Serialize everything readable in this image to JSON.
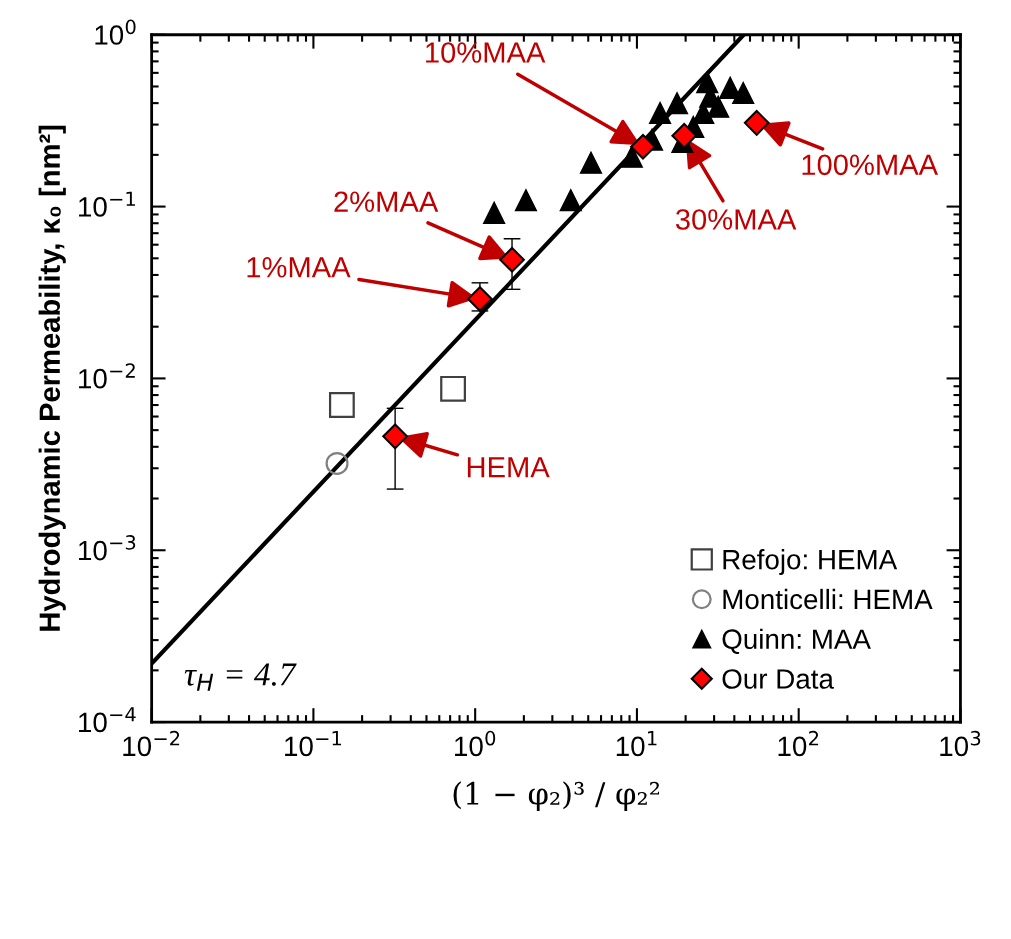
{
  "chart_data": {
    "type": "scatter",
    "xlabel": "(1 − φ₂)³ / φ₂²",
    "ylabel": "Hydrodynamic Permeability, κ₀ [nm²]",
    "log": "xy",
    "grid": false,
    "legend": "bottom right",
    "xlim": [
      0.01,
      1000
    ],
    "ylim": [
      0.0001,
      1
    ],
    "xticks": [
      {
        "value": 0.01,
        "label": "10$^{−2}$"
      },
      {
        "value": 0.1,
        "label": "10$^{−1}$"
      },
      {
        "value": 1,
        "label": "10$^{0}$"
      },
      {
        "value": 10,
        "label": "10$^{1}$"
      },
      {
        "value": 100,
        "label": "10$^{2}$"
      },
      {
        "value": 1000,
        "label": "10$^{3}$"
      }
    ],
    "yticks": [
      {
        "value": 0.0001,
        "label": "10$^{−4}$"
      },
      {
        "value": 0.001,
        "label": "10$^{−3}$"
      },
      {
        "value": 0.01,
        "label": "10$^{−2}$"
      },
      {
        "value": 0.1,
        "label": "10$^{−1}$"
      },
      {
        "value": 1,
        "label": "10$^{0}$"
      }
    ],
    "series": [
      {
        "type": "line",
        "color": "#000000",
        "marker": "none",
        "line_style": "solid",
        "x": [
          0.01,
          45.7
        ],
        "values": [
          0.000219,
          1.0
        ]
      },
      {
        "name": "Refojo: HEMA",
        "color": "#404040",
        "marker": "square",
        "x": [
          0.15,
          0.73
        ],
        "values": [
          0.007,
          0.0087
        ]
      },
      {
        "name": "Monticelli: HEMA",
        "color": "#808080",
        "marker": "circle",
        "x": [
          0.14
        ],
        "values": [
          0.0032
        ]
      },
      {
        "name": "Quinn: MAA",
        "color": "#000000",
        "marker": "triangle",
        "x": [
          1.31,
          2.06,
          3.9,
          5.2,
          9.3,
          12.4,
          13.9,
          17.7,
          19.1,
          22.3,
          25.7,
          27.2,
          28.4,
          31.8,
          37.7,
          45.4
        ],
        "values": [
          0.092,
          0.109,
          0.109,
          0.18,
          0.195,
          0.245,
          0.351,
          0.4,
          0.238,
          0.291,
          0.351,
          0.53,
          0.436,
          0.381,
          0.491,
          0.459
        ]
      },
      {
        "name": "Our Data",
        "color": "#ff0000",
        "marker": "diamond",
        "x": [
          0.32,
          1.07,
          1.69,
          10.9,
          19.6,
          55
        ],
        "values": [
          0.0046,
          0.029,
          0.049,
          0.223,
          0.258,
          0.307
        ],
        "errors": [
          [
            0.00227,
            0.0067
          ],
          [
            0.0247,
            0.036
          ],
          [
            0.033,
            0.065
          ],
          null,
          null,
          null
        ]
      }
    ],
    "annotations": [
      {
        "text": "10%MAA",
        "x": 10.9,
        "y": 0.223
      },
      {
        "text": "30%MAA",
        "x": 19.6,
        "y": 0.258
      },
      {
        "text": "100%MAA",
        "x": 55,
        "y": 0.307
      },
      {
        "text": "2%MAA",
        "x": 1.69,
        "y": 0.049
      },
      {
        "text": "1%MAA",
        "x": 1.07,
        "y": 0.029
      },
      {
        "text": "HEMA",
        "x": 0.32,
        "y": 0.0046
      },
      "τ$_{H}$ = 4.7"
    ]
  }
}
